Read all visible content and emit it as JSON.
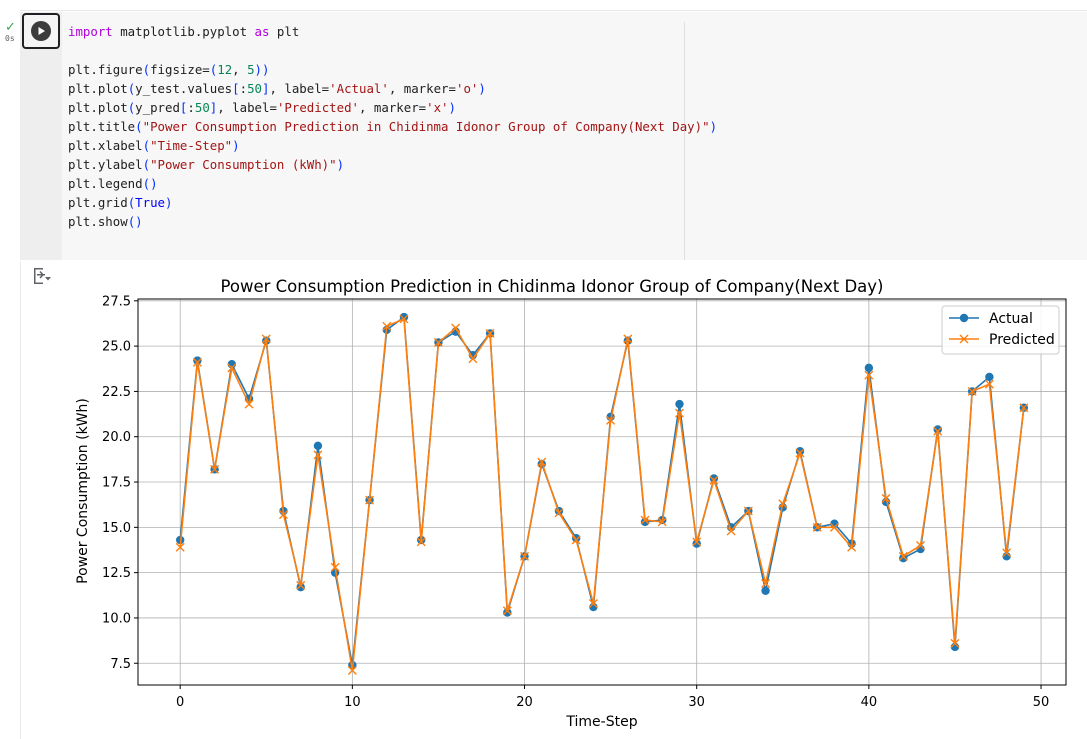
{
  "cell": {
    "status": "✓",
    "exec_time": "0s",
    "code_lines": [
      [
        {
          "t": "import",
          "c": "kw"
        },
        {
          "t": " matplotlib.pyplot "
        },
        {
          "t": "as",
          "c": "kw"
        },
        {
          "t": " plt"
        }
      ],
      [
        {
          "t": ""
        }
      ],
      [
        {
          "t": "plt.figure"
        },
        {
          "t": "(",
          "c": "paren"
        },
        {
          "t": "figsize="
        },
        {
          "t": "(",
          "c": "paren"
        },
        {
          "t": "12",
          "c": "num"
        },
        {
          "t": ", "
        },
        {
          "t": "5",
          "c": "num"
        },
        {
          "t": "))",
          "c": "paren"
        }
      ],
      [
        {
          "t": "plt.plot"
        },
        {
          "t": "(",
          "c": "paren"
        },
        {
          "t": "y_test.values"
        },
        {
          "t": "[",
          "c": "paren"
        },
        {
          "t": ":"
        },
        {
          "t": "50",
          "c": "num"
        },
        {
          "t": "]",
          "c": "paren"
        },
        {
          "t": ", label="
        },
        {
          "t": "'Actual'",
          "c": "str"
        },
        {
          "t": ", marker="
        },
        {
          "t": "'o'",
          "c": "str"
        },
        {
          "t": ")",
          "c": "paren"
        }
      ],
      [
        {
          "t": "plt.plot"
        },
        {
          "t": "(",
          "c": "paren"
        },
        {
          "t": "y_pred"
        },
        {
          "t": "[",
          "c": "paren"
        },
        {
          "t": ":"
        },
        {
          "t": "50",
          "c": "num"
        },
        {
          "t": "]",
          "c": "paren"
        },
        {
          "t": ", label="
        },
        {
          "t": "'Predicted'",
          "c": "str"
        },
        {
          "t": ", marker="
        },
        {
          "t": "'x'",
          "c": "str"
        },
        {
          "t": ")",
          "c": "paren"
        }
      ],
      [
        {
          "t": "plt.title"
        },
        {
          "t": "(",
          "c": "paren"
        },
        {
          "t": "\"Power Consumption Prediction in Chidinma Idonor Group of Company(Next Day)\"",
          "c": "str"
        },
        {
          "t": ")",
          "c": "paren"
        }
      ],
      [
        {
          "t": "plt.xlabel"
        },
        {
          "t": "(",
          "c": "paren"
        },
        {
          "t": "\"Time-Step\"",
          "c": "str"
        },
        {
          "t": ")",
          "c": "paren"
        }
      ],
      [
        {
          "t": "plt.ylabel"
        },
        {
          "t": "(",
          "c": "paren"
        },
        {
          "t": "\"Power Consumption (kWh)\"",
          "c": "str"
        },
        {
          "t": ")",
          "c": "paren"
        }
      ],
      [
        {
          "t": "plt.legend"
        },
        {
          "t": "()",
          "c": "paren"
        }
      ],
      [
        {
          "t": "plt.grid"
        },
        {
          "t": "(",
          "c": "paren"
        },
        {
          "t": "True",
          "c": "const"
        },
        {
          "t": ")",
          "c": "paren"
        }
      ],
      [
        {
          "t": "plt.show"
        },
        {
          "t": "()",
          "c": "paren"
        }
      ]
    ]
  },
  "chart_data": {
    "type": "line",
    "title": "Power Consumption Prediction in Chidinma Idonor Group of Company(Next Day)",
    "xlabel": "Time-Step",
    "ylabel": "Power Consumption (kWh)",
    "xlim": [
      -2.45,
      51.45
    ],
    "ylim": [
      6.3,
      27.6
    ],
    "xticks": [
      0,
      10,
      20,
      30,
      40,
      50
    ],
    "yticks": [
      7.5,
      10.0,
      12.5,
      15.0,
      17.5,
      20.0,
      22.5,
      25.0,
      27.5
    ],
    "grid": true,
    "legend_position": "top-right",
    "x": [
      0,
      1,
      2,
      3,
      4,
      5,
      6,
      7,
      8,
      9,
      10,
      11,
      12,
      13,
      14,
      15,
      16,
      17,
      18,
      19,
      20,
      21,
      22,
      23,
      24,
      25,
      26,
      27,
      28,
      29,
      30,
      31,
      32,
      33,
      34,
      35,
      36,
      37,
      38,
      39,
      40,
      41,
      42,
      43,
      44,
      45,
      46,
      47,
      48,
      49
    ],
    "series": [
      {
        "name": "Actual",
        "color": "#1f77b4",
        "marker": "o",
        "values": [
          14.3,
          24.2,
          18.2,
          24.0,
          22.1,
          25.3,
          15.9,
          11.7,
          19.5,
          12.5,
          7.4,
          16.5,
          25.9,
          26.6,
          14.3,
          25.2,
          25.8,
          24.5,
          25.7,
          10.3,
          13.4,
          18.5,
          15.9,
          14.4,
          10.6,
          21.1,
          25.3,
          15.3,
          15.4,
          21.8,
          14.1,
          17.7,
          15.0,
          15.9,
          11.5,
          16.1,
          19.2,
          15.0,
          15.2,
          14.1,
          23.8,
          16.4,
          13.3,
          13.8,
          20.4,
          8.4,
          22.5,
          23.3,
          13.4,
          21.6
        ]
      },
      {
        "name": "Predicted",
        "color": "#ff7f0e",
        "marker": "x",
        "values": [
          13.9,
          24.1,
          18.2,
          23.8,
          21.8,
          25.4,
          15.7,
          11.8,
          19.0,
          12.8,
          7.1,
          16.5,
          26.1,
          26.5,
          14.2,
          25.2,
          26.0,
          24.3,
          25.7,
          10.4,
          13.4,
          18.6,
          15.8,
          14.3,
          10.8,
          20.9,
          25.4,
          15.4,
          15.3,
          21.3,
          14.2,
          17.6,
          14.8,
          15.9,
          11.9,
          16.3,
          19.1,
          15.0,
          15.0,
          13.9,
          23.4,
          16.6,
          13.4,
          14.0,
          20.3,
          8.6,
          22.5,
          22.9,
          13.6,
          21.6
        ]
      }
    ]
  }
}
